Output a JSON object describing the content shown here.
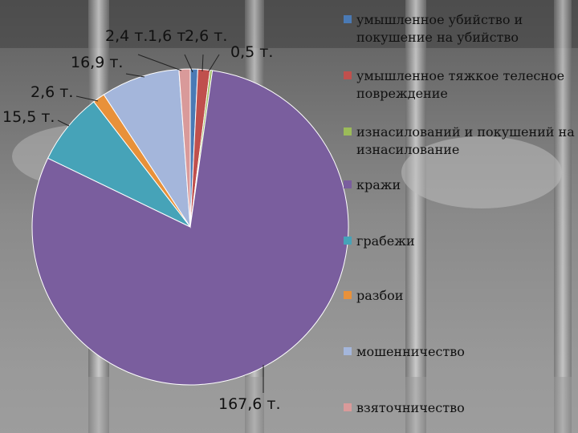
{
  "chart_data": {
    "type": "pie",
    "unit": "т.",
    "slices": [
      {
        "label": "умышленное убийство и покушение на убийство",
        "value": 1.6,
        "data_label": "1,6 т.",
        "color": "#4a7ab5"
      },
      {
        "label": "умышленное тяжкое телесное повреждение",
        "value": 2.6,
        "data_label": "2,6 т.",
        "color": "#c0504d"
      },
      {
        "label": "изнасилований и покушений на изнасилование",
        "value": 0.5,
        "data_label": "0,5 т.",
        "color": "#9bbb59"
      },
      {
        "label": "кражи",
        "value": 167.6,
        "data_label": "167,6 т.",
        "color": "#7a5e9e"
      },
      {
        "label": "грабежи",
        "value": 15.5,
        "data_label": "15,5 т.",
        "color": "#46a3b8"
      },
      {
        "label": "разбои",
        "value": 2.6,
        "data_label": "2,6 т.",
        "color": "#e8913a"
      },
      {
        "label": "мошенничество",
        "value": 16.9,
        "data_label": "16,9 т.",
        "color": "#a4b6db"
      },
      {
        "label": "взяточничество",
        "value": 2.4,
        "data_label": "2,4 т.",
        "color": "#d99a9a"
      }
    ],
    "legend_position": "right"
  }
}
